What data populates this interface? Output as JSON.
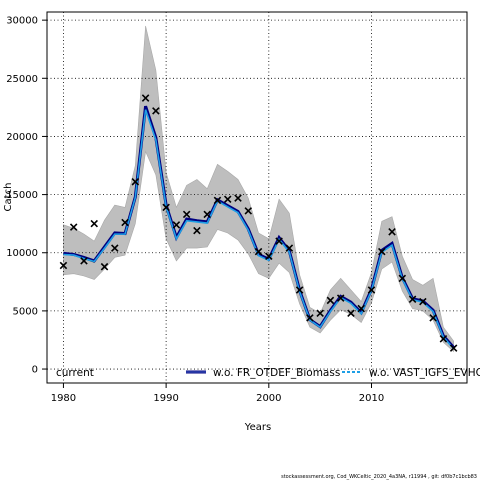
{
  "chart_data": {
    "type": "line",
    "xlabel": "Years",
    "ylabel": "Catch",
    "xlim": [
      1978.4,
      2019.3
    ],
    "ylim": [
      -1200,
      30700
    ],
    "xticks": [
      1980,
      1990,
      2000,
      2010
    ],
    "yticks": [
      0,
      5000,
      10000,
      15000,
      20000,
      25000,
      30000
    ],
    "grid": true,
    "legend_position": "bottom",
    "colors": {
      "band": "#bebebe",
      "current": "#000000",
      "fr_otdef": "#000080",
      "vast": "#1e9fe6",
      "points": "#000000"
    },
    "legend": {
      "current": "current",
      "fr_otdef": "w.o. FR_OTDEF_Biomass",
      "vast": "w.o. VAST_IGFS_EVHOE"
    },
    "footer": "stockassessment.org, Cod_WKCeltic_2020_4a3NA, r11994 , git: df0b7c1bcb83",
    "years": [
      1980,
      1981,
      1982,
      1983,
      1984,
      1985,
      1986,
      1987,
      1988,
      1989,
      1990,
      1991,
      1992,
      1993,
      1994,
      1995,
      1996,
      1997,
      1998,
      1999,
      2000,
      2001,
      2002,
      2003,
      2004,
      2005,
      2006,
      2007,
      2008,
      2009,
      2010,
      2011,
      2012,
      2013,
      2014,
      2015,
      2016,
      2017,
      2018
    ],
    "observed": [
      8900,
      12200,
      9300,
      12500,
      8800,
      10400,
      12600,
      16100,
      23300,
      22200,
      13900,
      12400,
      13300,
      11900,
      13300,
      14500,
      14600,
      14700,
      13600,
      10100,
      9700,
      11000,
      10400,
      6800,
      4400,
      4800,
      5900,
      6100,
      4800,
      5200,
      6800,
      10100,
      11800,
      7800,
      6000,
      5800,
      4400,
      2600,
      1800
    ],
    "estimate_current": [
      9900,
      9800,
      9500,
      9200,
      10400,
      11600,
      11600,
      14700,
      22400,
      19800,
      14000,
      11200,
      12800,
      12700,
      12600,
      14500,
      14000,
      13500,
      12000,
      9800,
      9400,
      11200,
      10100,
      6700,
      4200,
      3600,
      5000,
      6200,
      5700,
      4800,
      6800,
      10100,
      10700,
      7800,
      6000,
      5800,
      5000,
      2800,
      1800
    ],
    "estimate_fr_otdef": [
      9950,
      9850,
      9600,
      9300,
      10500,
      11700,
      11650,
      14800,
      22600,
      19900,
      14100,
      11300,
      12900,
      12750,
      12650,
      14550,
      14050,
      13550,
      12050,
      9850,
      9450,
      11300,
      10150,
      6750,
      4250,
      3650,
      5050,
      6250,
      5750,
      4850,
      6850,
      10200,
      10800,
      7850,
      6050,
      5850,
      5050,
      2850,
      1850
    ],
    "estimate_vast": [
      9850,
      9800,
      9500,
      9250,
      10400,
      11600,
      11600,
      14750,
      22300,
      19700,
      13950,
      11200,
      12750,
      12650,
      12550,
      14450,
      13950,
      13450,
      11950,
      9750,
      9350,
      11150,
      10050,
      6650,
      4200,
      3600,
      4950,
      6150,
      5650,
      4750,
      6750,
      10050,
      10650,
      7750,
      5950,
      5750,
      4950,
      2750,
      1750
    ],
    "ci_lower": [
      8100,
      8200,
      8000,
      7700,
      8600,
      9600,
      9800,
      12500,
      18700,
      16700,
      11200,
      9300,
      10400,
      10400,
      10500,
      12000,
      11700,
      11100,
      9900,
      8200,
      7800,
      9100,
      8300,
      5600,
      3600,
      3100,
      4200,
      5100,
      4700,
      4000,
      5700,
      8600,
      9200,
      6700,
      5200,
      5000,
      4200,
      2300,
      1500
    ],
    "ci_upper": [
      12400,
      12100,
      11600,
      11000,
      12800,
      14100,
      13900,
      17500,
      29500,
      25700,
      16900,
      13900,
      15800,
      16300,
      15500,
      17600,
      17000,
      16300,
      14700,
      11700,
      11200,
      14600,
      13400,
      8100,
      5300,
      4800,
      6800,
      7800,
      6800,
      5800,
      8300,
      12700,
      13100,
      9700,
      7700,
      7200,
      7800,
      3600,
      2400
    ]
  }
}
